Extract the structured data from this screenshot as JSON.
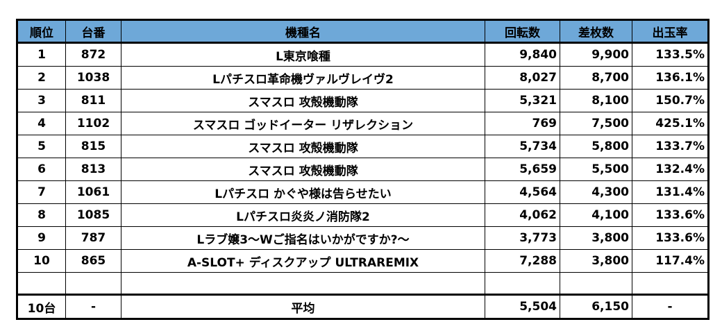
{
  "headers": {
    "rank": "順位",
    "machine_no": "台番",
    "model": "機種名",
    "spins": "回転数",
    "diff": "差枚数",
    "payout": "出玉率"
  },
  "rows": [
    {
      "rank": "1",
      "machine_no": "872",
      "model": "L東京喰種",
      "spins": "9,840",
      "diff": "9,900",
      "payout": "133.5%"
    },
    {
      "rank": "2",
      "machine_no": "1038",
      "model": "Lパチスロ革命機ヴァルヴレイヴ2",
      "spins": "8,027",
      "diff": "8,700",
      "payout": "136.1%"
    },
    {
      "rank": "3",
      "machine_no": "811",
      "model": "スマスロ 攻殻機動隊",
      "spins": "5,321",
      "diff": "8,100",
      "payout": "150.7%"
    },
    {
      "rank": "4",
      "machine_no": "1102",
      "model": "スマスロ ゴッドイーター リザレクション",
      "spins": "769",
      "diff": "7,500",
      "payout": "425.1%"
    },
    {
      "rank": "5",
      "machine_no": "815",
      "model": "スマスロ 攻殻機動隊",
      "spins": "5,734",
      "diff": "5,800",
      "payout": "133.7%"
    },
    {
      "rank": "6",
      "machine_no": "813",
      "model": "スマスロ 攻殻機動隊",
      "spins": "5,659",
      "diff": "5,500",
      "payout": "132.4%"
    },
    {
      "rank": "7",
      "machine_no": "1061",
      "model": "Lパチスロ かぐや様は告らせたい",
      "spins": "4,564",
      "diff": "4,300",
      "payout": "131.4%"
    },
    {
      "rank": "8",
      "machine_no": "1085",
      "model": "Lパチスロ炎炎ノ消防隊2",
      "spins": "4,062",
      "diff": "4,100",
      "payout": "133.6%"
    },
    {
      "rank": "9",
      "machine_no": "787",
      "model": "Lラブ嬢3～Wご指名はいかがですか?～",
      "spins": "3,773",
      "diff": "3,800",
      "payout": "133.6%"
    },
    {
      "rank": "10",
      "machine_no": "865",
      "model": "A-SLOT+ ディスクアップ ULTRAREMIX",
      "spins": "7,288",
      "diff": "3,800",
      "payout": "117.4%"
    }
  ],
  "summary": {
    "count": "10台",
    "machine_no": "-",
    "label": "平均",
    "spins": "5,504",
    "diff": "6,150",
    "payout": "-"
  }
}
